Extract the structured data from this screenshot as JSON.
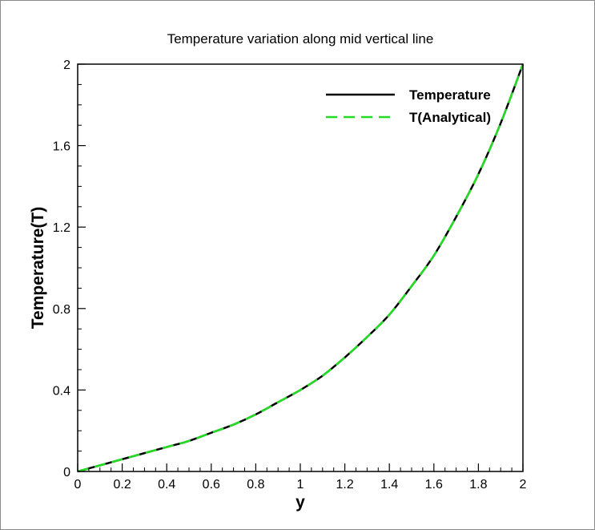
{
  "chart_data": {
    "type": "line",
    "title": "Temperature variation along mid vertical line",
    "xlabel": "y",
    "ylabel": "Temperature(T)",
    "xlim": [
      0,
      2
    ],
    "ylim": [
      0,
      2
    ],
    "x_ticks": [
      "0",
      "0.2",
      "0.4",
      "0.6",
      "0.8",
      "1",
      "1.2",
      "1.4",
      "1.6",
      "1.8",
      "2"
    ],
    "y_ticks": [
      "0",
      "0.4",
      "0.8",
      "1.2",
      "1.6",
      "2"
    ],
    "grid": false,
    "legend_position": "top-right",
    "x": [
      0,
      0.1,
      0.2,
      0.3,
      0.4,
      0.5,
      0.6,
      0.7,
      0.8,
      0.9,
      1.0,
      1.1,
      1.2,
      1.3,
      1.4,
      1.5,
      1.6,
      1.7,
      1.8,
      1.9,
      2.0
    ],
    "series": [
      {
        "name": "Temperature",
        "color": "#000000",
        "style": "solid",
        "values": [
          0,
          0.03,
          0.06,
          0.09,
          0.12,
          0.15,
          0.19,
          0.23,
          0.28,
          0.34,
          0.4,
          0.47,
          0.56,
          0.66,
          0.77,
          0.91,
          1.06,
          1.25,
          1.46,
          1.71,
          2
        ]
      },
      {
        "name": "T(Analytical)",
        "color": "#22dd22",
        "style": "dashed",
        "values": [
          0,
          0.03,
          0.06,
          0.09,
          0.12,
          0.15,
          0.19,
          0.23,
          0.28,
          0.34,
          0.4,
          0.47,
          0.56,
          0.66,
          0.77,
          0.91,
          1.06,
          1.25,
          1.46,
          1.71,
          2
        ]
      }
    ]
  }
}
